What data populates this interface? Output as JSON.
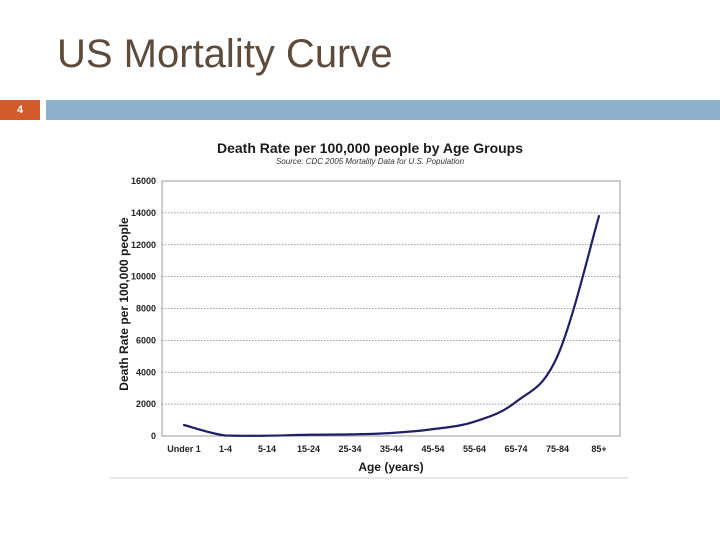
{
  "slide": {
    "title": "US Mortality Curve",
    "number": "4",
    "colors": {
      "number_box": "#d35a2a",
      "header_bar": "#8eb1cc",
      "title": "#5e4b3c"
    }
  },
  "chart_data": {
    "type": "line",
    "title": "Death Rate per 100,000 people by Age Groups",
    "subtitle": "Source: CDC 2005 Mortality Data for U.S. Population",
    "xlabel": "Age (years)",
    "ylabel": "Death Rate per 100,000 people",
    "categories": [
      "Under 1",
      "1-4",
      "5-14",
      "15-24",
      "25-34",
      "35-44",
      "45-54",
      "55-64",
      "65-74",
      "75-84",
      "85+"
    ],
    "values": [
      690,
      30,
      20,
      80,
      100,
      190,
      430,
      900,
      2140,
      5020,
      13800
    ],
    "ylim": [
      0,
      16000
    ],
    "yticks": [
      0,
      2000,
      4000,
      6000,
      8000,
      10000,
      12000,
      14000,
      16000
    ],
    "grid": true,
    "line_color": "#1f1f66"
  }
}
